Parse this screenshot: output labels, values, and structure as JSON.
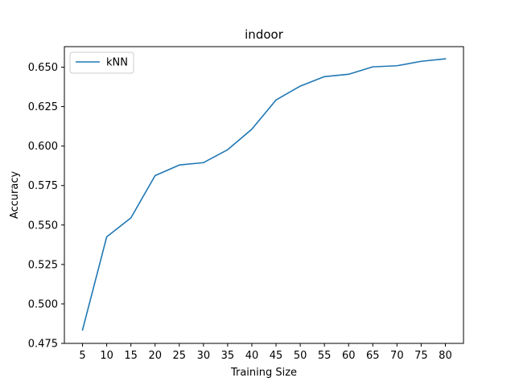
{
  "chart_data": {
    "type": "line",
    "title": "indoor",
    "xlabel": "Training Size",
    "ylabel": "Accuracy",
    "x": [
      5,
      10,
      15,
      20,
      25,
      30,
      35,
      40,
      45,
      50,
      55,
      60,
      65,
      70,
      75,
      80
    ],
    "xticks": [
      "5",
      "10",
      "15",
      "20",
      "25",
      "30",
      "35",
      "40",
      "45",
      "50",
      "55",
      "60",
      "65",
      "70",
      "75",
      "80"
    ],
    "yticks": [
      "0.475",
      "0.500",
      "0.525",
      "0.550",
      "0.575",
      "0.600",
      "0.625",
      "0.650"
    ],
    "ylim": [
      0.475,
      0.663
    ],
    "xlim": [
      1.25,
      83.75
    ],
    "grid": false,
    "legend_position": "upper-left",
    "series": [
      {
        "name": "kNN",
        "color": "#1f77b4",
        "values": [
          0.4835,
          0.5425,
          0.5545,
          0.5813,
          0.588,
          0.5895,
          0.5977,
          0.6107,
          0.6292,
          0.638,
          0.644,
          0.6455,
          0.6502,
          0.6509,
          0.6537,
          0.6553
        ]
      }
    ]
  }
}
